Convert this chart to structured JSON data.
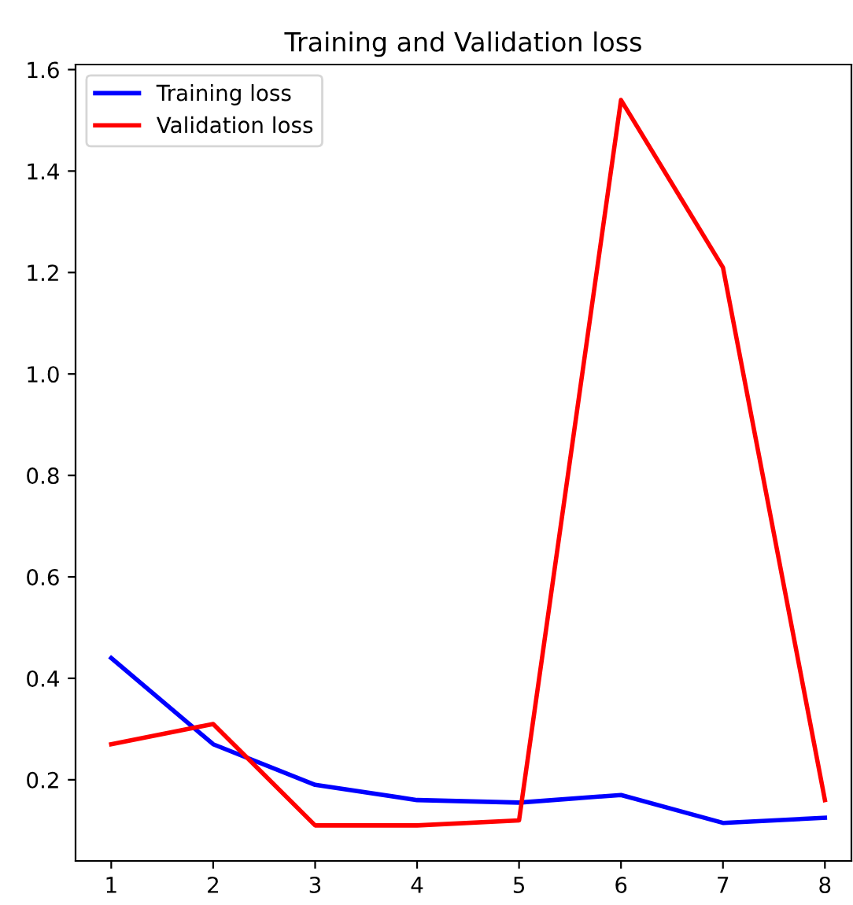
{
  "chart_data": {
    "type": "line",
    "title": "Training and Validation loss",
    "x": [
      1,
      2,
      3,
      4,
      5,
      6,
      7,
      8
    ],
    "series": [
      {
        "name": "Training loss",
        "color": "#0000ff",
        "values": [
          0.44,
          0.27,
          0.19,
          0.16,
          0.155,
          0.17,
          0.115,
          0.125
        ]
      },
      {
        "name": "Validation loss",
        "color": "#ff0000",
        "values": [
          0.27,
          0.31,
          0.11,
          0.11,
          0.12,
          1.54,
          1.21,
          0.16
        ]
      }
    ],
    "xlim": [
      0.65,
      8.26
    ],
    "ylim": [
      0.04,
      1.61
    ],
    "xticks": [
      1,
      2,
      3,
      4,
      5,
      6,
      7,
      8
    ],
    "yticks": [
      {
        "value": 0.2,
        "label": "0.2"
      },
      {
        "value": 0.4,
        "label": "0.4"
      },
      {
        "value": 0.6,
        "label": "0.6"
      },
      {
        "value": 0.8,
        "label": "0.8"
      },
      {
        "value": 1.0,
        "label": "1.0"
      },
      {
        "value": 1.2,
        "label": "1.2"
      },
      {
        "value": 1.4,
        "label": "1.4"
      },
      {
        "value": 1.6,
        "label": "1.6"
      }
    ],
    "legend": "top left",
    "grid": false
  }
}
